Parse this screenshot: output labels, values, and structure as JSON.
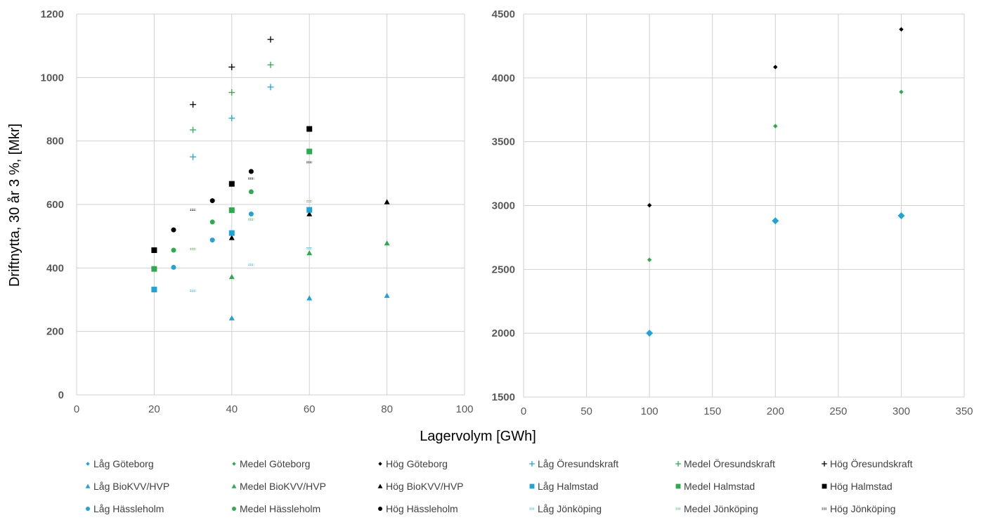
{
  "colors": {
    "lag": "#1FA4D8",
    "medel": "#2EAA4F",
    "hog": "#000000",
    "grid": "#D0D0D0",
    "tick_text": "#595959"
  },
  "chart_data": [
    {
      "type": "scatter",
      "panel": "left",
      "ylabel": "Driftnytta, 30 år 3 %, [Mkr]",
      "xlabel": "Lagervolym [GWh]",
      "xlim": [
        0,
        100
      ],
      "ylim": [
        0,
        1200
      ],
      "xticks": [
        0,
        20,
        40,
        60,
        80,
        100
      ],
      "yticks": [
        0,
        200,
        400,
        600,
        800,
        1000,
        1200
      ],
      "grid": true,
      "series": [
        {
          "name": "Låg Öresundskraft",
          "level": "lag",
          "marker": "plus",
          "points": [
            [
              30,
              750
            ],
            [
              40,
              872
            ],
            [
              50,
              970
            ]
          ]
        },
        {
          "name": "Medel Öresundskraft",
          "level": "medel",
          "marker": "plus",
          "points": [
            [
              30,
              835
            ],
            [
              40,
              953
            ],
            [
              50,
              1040
            ]
          ]
        },
        {
          "name": "Hög Öresundskraft",
          "level": "hog",
          "marker": "plus",
          "points": [
            [
              30,
              915
            ],
            [
              40,
              1033
            ],
            [
              50,
              1120
            ]
          ]
        },
        {
          "name": "Låg BioKVV/HVP",
          "level": "lag",
          "marker": "triangle",
          "points": [
            [
              40,
              242
            ],
            [
              60,
              305
            ],
            [
              80,
              313
            ]
          ]
        },
        {
          "name": "Medel BioKVV/HVP",
          "level": "medel",
          "marker": "triangle",
          "points": [
            [
              40,
              372
            ],
            [
              60,
              447
            ],
            [
              80,
              478
            ]
          ]
        },
        {
          "name": "Hög BioKVV/HVP",
          "level": "hog",
          "marker": "triangle",
          "points": [
            [
              40,
              495
            ],
            [
              60,
              570
            ],
            [
              80,
              608
            ]
          ]
        },
        {
          "name": "Låg Halmstad",
          "level": "lag",
          "marker": "square",
          "points": [
            [
              20,
              332
            ],
            [
              40,
              510
            ],
            [
              60,
              583
            ]
          ]
        },
        {
          "name": "Medel Halmstad",
          "level": "medel",
          "marker": "square",
          "points": [
            [
              20,
              397
            ],
            [
              40,
              582
            ],
            [
              60,
              767
            ]
          ]
        },
        {
          "name": "Hög Halmstad",
          "level": "hog",
          "marker": "square",
          "points": [
            [
              20,
              456
            ],
            [
              40,
              665
            ],
            [
              60,
              838
            ]
          ]
        },
        {
          "name": "Låg Hässleholm",
          "level": "lag",
          "marker": "circle",
          "points": [
            [
              25,
              402
            ],
            [
              35,
              488
            ],
            [
              45,
              570
            ]
          ]
        },
        {
          "name": "Medel Hässleholm",
          "level": "medel",
          "marker": "circle",
          "points": [
            [
              25,
              456
            ],
            [
              35,
              545
            ],
            [
              45,
              640
            ]
          ]
        },
        {
          "name": "Hög Hässleholm",
          "level": "hog",
          "marker": "circle",
          "points": [
            [
              25,
              520
            ],
            [
              35,
              612
            ],
            [
              45,
              704
            ]
          ]
        },
        {
          "name": "Låg Jönköping",
          "level": "lag",
          "marker": "dash",
          "points": [
            [
              30,
              328
            ],
            [
              45,
              410
            ],
            [
              60,
              462
            ]
          ]
        },
        {
          "name": "Medel Jönköping",
          "level": "medel",
          "marker": "dash",
          "points": [
            [
              30,
              460
            ],
            [
              45,
              553
            ],
            [
              60,
              610
            ]
          ]
        },
        {
          "name": "Hög Jönköping",
          "level": "hog",
          "marker": "dash",
          "points": [
            [
              30,
              583
            ],
            [
              45,
              682
            ],
            [
              60,
              733
            ]
          ]
        }
      ]
    },
    {
      "type": "scatter",
      "panel": "right",
      "xlim": [
        0,
        350
      ],
      "ylim": [
        1500,
        4500
      ],
      "xticks": [
        0,
        50,
        100,
        150,
        200,
        250,
        300,
        350
      ],
      "yticks": [
        1500,
        2000,
        2500,
        3000,
        3500,
        4000,
        4500
      ],
      "grid": true,
      "series": [
        {
          "name": "Låg Göteborg",
          "level": "lag",
          "marker": "diamond-lg",
          "points": [
            [
              100,
              2000
            ],
            [
              200,
              2880
            ],
            [
              300,
              2920
            ]
          ]
        },
        {
          "name": "Medel Göteborg",
          "level": "medel",
          "marker": "diamond",
          "points": [
            [
              100,
              2575
            ],
            [
              200,
              3622
            ],
            [
              300,
              3890
            ]
          ]
        },
        {
          "name": "Hög Göteborg",
          "level": "hog",
          "marker": "diamond",
          "points": [
            [
              100,
              3002
            ],
            [
              200,
              4085
            ],
            [
              300,
              4380
            ]
          ]
        }
      ]
    }
  ],
  "legend": [
    {
      "label": "Låg Göteborg",
      "level": "lag",
      "marker": "diamond"
    },
    {
      "label": "Medel Göteborg",
      "level": "medel",
      "marker": "diamond"
    },
    {
      "label": "Hög Göteborg",
      "level": "hog",
      "marker": "diamond"
    },
    {
      "label": "Låg Öresundskraft",
      "level": "lag",
      "marker": "plus"
    },
    {
      "label": "Medel Öresundskraft",
      "level": "medel",
      "marker": "plus"
    },
    {
      "label": "Hög Öresundskraft",
      "level": "hog",
      "marker": "plus"
    },
    {
      "label": "Låg BioKVV/HVP",
      "level": "lag",
      "marker": "triangle"
    },
    {
      "label": "Medel BioKVV/HVP",
      "level": "medel",
      "marker": "triangle"
    },
    {
      "label": "Hög BioKVV/HVP",
      "level": "hog",
      "marker": "triangle"
    },
    {
      "label": "Låg Halmstad",
      "level": "lag",
      "marker": "square"
    },
    {
      "label": "Medel Halmstad",
      "level": "medel",
      "marker": "square"
    },
    {
      "label": "Hög Halmstad",
      "level": "hog",
      "marker": "square"
    },
    {
      "label": "Låg Hässleholm",
      "level": "lag",
      "marker": "circle"
    },
    {
      "label": "Medel Hässleholm",
      "level": "medel",
      "marker": "circle"
    },
    {
      "label": "Hög Hässleholm",
      "level": "hog",
      "marker": "circle"
    },
    {
      "label": "Låg Jönköping",
      "level": "lag",
      "marker": "dash"
    },
    {
      "label": "Medel Jönköping",
      "level": "medel",
      "marker": "dash"
    },
    {
      "label": "Hög Jönköping",
      "level": "hog",
      "marker": "dash"
    }
  ]
}
